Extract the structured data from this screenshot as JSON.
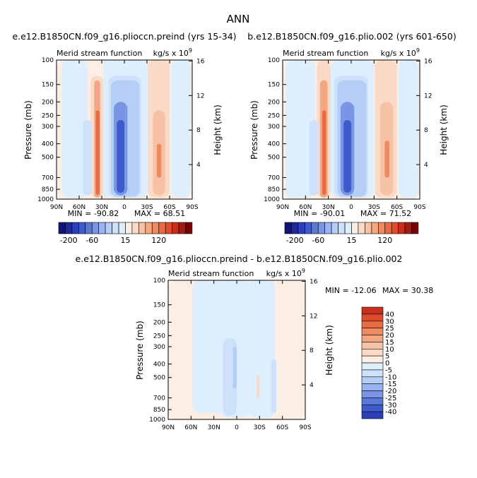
{
  "figure_title": "ANN",
  "colors": {
    "neg": [
      "#ddeeff",
      "#cde1fb",
      "#b4cef6",
      "#98b4ee",
      "#7a95e3",
      "#5a78d8",
      "#3d5bcb",
      "#2a40b4",
      "#1d2a9a",
      "#0f157a"
    ],
    "pos": [
      "#fdeee4",
      "#fad9c5",
      "#f6c2a6",
      "#f2a682",
      "#ee8a60",
      "#e86b42",
      "#de4d2b",
      "#c8301c",
      "#a51a12",
      "#800000"
    ]
  },
  "chart_data": [
    {
      "type": "heatmap",
      "panel": "top-left",
      "title": "e.e12.B1850CN.f09_g16.plioccn.preind (yrs 15-34)",
      "left_string": "Merid stream function",
      "right_string": "kg/s x 10",
      "right_string_exp": "9",
      "ylabel": "Pressure (mb)",
      "y2label": "Height (km)",
      "x_ticks": [
        "90N",
        "60N",
        "30N",
        "0",
        "30S",
        "60S",
        "90S"
      ],
      "y_ticks": [
        "100",
        "150",
        "200",
        "250",
        "300",
        "400",
        "500",
        "700",
        "850",
        "1000"
      ],
      "y2_ticks": [
        "16",
        "12",
        "8",
        "4"
      ],
      "min_label": "MIN = -90.82",
      "max_label": "MAX = 68.51",
      "cells": [
        {
          "lat_from": 90,
          "lat_to": -90,
          "level": 1,
          "p_top": 100,
          "p_bottom": 1000
        },
        {
          "lat_from": 83,
          "lat_to": 49,
          "level": -1,
          "p_top": 100,
          "p_bottom": 975
        },
        {
          "lat_from": 45,
          "lat_to": 28,
          "level": 2,
          "p_top": 130,
          "p_bottom": 975
        },
        {
          "lat_from": 40,
          "lat_to": 32,
          "level": 4,
          "p_top": 140,
          "p_bottom": 975
        },
        {
          "lat_from": 38,
          "lat_to": 33,
          "level": 6,
          "p_top": 230,
          "p_bottom": 930
        },
        {
          "lat_from": 55,
          "lat_to": 43,
          "level": -2,
          "p_top": 270,
          "p_bottom": 940
        },
        {
          "lat_from": 28,
          "lat_to": 21,
          "level": -1,
          "p_top": 100,
          "p_bottom": 975
        },
        {
          "lat_from": 24,
          "lat_to": -31,
          "level": -1,
          "p_top": 100,
          "p_bottom": 975
        },
        {
          "lat_from": 21,
          "lat_to": -22,
          "level": -2,
          "p_top": 130,
          "p_bottom": 975
        },
        {
          "lat_from": 18,
          "lat_to": -20,
          "level": -3,
          "p_top": 140,
          "p_bottom": 960
        },
        {
          "lat_from": 14,
          "lat_to": -4,
          "level": -5,
          "p_top": 200,
          "p_bottom": 940
        },
        {
          "lat_from": 10,
          "lat_to": 0,
          "level": -7,
          "p_top": 270,
          "p_bottom": 900
        },
        {
          "lat_from": -31,
          "lat_to": -60,
          "level": 2,
          "p_top": 100,
          "p_bottom": 975
        },
        {
          "lat_from": -38,
          "lat_to": -54,
          "level": 3,
          "p_top": 230,
          "p_bottom": 940
        },
        {
          "lat_from": -43,
          "lat_to": -49,
          "level": 5,
          "p_top": 400,
          "p_bottom": 700
        },
        {
          "lat_from": -62,
          "lat_to": -88,
          "level": -1,
          "p_top": 100,
          "p_bottom": 975
        }
      ]
    },
    {
      "type": "heatmap",
      "panel": "top-right",
      "title": "b.e12.B1850CN.f09_g16.plio.002 (yrs 601-650)",
      "left_string": "Merid stream function",
      "right_string": "kg/s x 10",
      "right_string_exp": "9",
      "ylabel": "Pressure (mb)",
      "y2label": "Height (km)",
      "x_ticks": [
        "90N",
        "60N",
        "30N",
        "0",
        "30S",
        "60S",
        "90S"
      ],
      "y_ticks": [
        "100",
        "150",
        "200",
        "250",
        "300",
        "400",
        "500",
        "700",
        "850",
        "1000"
      ],
      "y2_ticks": [
        "16",
        "12",
        "8",
        "4"
      ],
      "min_label": "MIN = -90.01",
      "max_label": "MAX = 71.52",
      "cells": [
        {
          "lat_from": 90,
          "lat_to": -90,
          "level": 1,
          "p_top": 100,
          "p_bottom": 1000
        },
        {
          "lat_from": 86,
          "lat_to": 47,
          "level": -1,
          "p_top": 100,
          "p_bottom": 975
        },
        {
          "lat_from": 45,
          "lat_to": 27,
          "level": 2,
          "p_top": 100,
          "p_bottom": 975
        },
        {
          "lat_from": 41,
          "lat_to": 31,
          "level": 4,
          "p_top": 140,
          "p_bottom": 975
        },
        {
          "lat_from": 38,
          "lat_to": 33,
          "level": 6,
          "p_top": 230,
          "p_bottom": 930
        },
        {
          "lat_from": 55,
          "lat_to": 43,
          "level": -2,
          "p_top": 270,
          "p_bottom": 940
        },
        {
          "lat_from": 27,
          "lat_to": -30,
          "level": -1,
          "p_top": 100,
          "p_bottom": 975
        },
        {
          "lat_from": 22,
          "lat_to": -22,
          "level": -2,
          "p_top": 130,
          "p_bottom": 975
        },
        {
          "lat_from": 18,
          "lat_to": -20,
          "level": -3,
          "p_top": 140,
          "p_bottom": 960
        },
        {
          "lat_from": 14,
          "lat_to": -4,
          "level": -5,
          "p_top": 200,
          "p_bottom": 940
        },
        {
          "lat_from": 10,
          "lat_to": 0,
          "level": -7,
          "p_top": 270,
          "p_bottom": 900
        },
        {
          "lat_from": -31,
          "lat_to": -60,
          "level": 2,
          "p_top": 100,
          "p_bottom": 975
        },
        {
          "lat_from": -38,
          "lat_to": -55,
          "level": 3,
          "p_top": 200,
          "p_bottom": 940
        },
        {
          "lat_from": -44,
          "lat_to": -50,
          "level": 5,
          "p_top": 380,
          "p_bottom": 700
        },
        {
          "lat_from": -62,
          "lat_to": -88,
          "level": -1,
          "p_top": 100,
          "p_bottom": 975
        }
      ]
    },
    {
      "type": "heatmap",
      "panel": "bottom",
      "title": "e.e12.B1850CN.f09_g16.plioccn.preind - b.e12.B1850CN.f09_g16.plio.002",
      "left_string": "Merid stream function",
      "right_string": "kg/s x 10",
      "right_string_exp": "9",
      "ylabel": "Pressure (mb)",
      "y2label": "Height (km)",
      "x_ticks": [
        "90N",
        "60N",
        "30N",
        "0",
        "30S",
        "60S",
        "90S"
      ],
      "y_ticks": [
        "100",
        "150",
        "200",
        "250",
        "300",
        "400",
        "500",
        "700",
        "850",
        "1000"
      ],
      "y2_ticks": [
        "16",
        "12",
        "8",
        "4"
      ],
      "min_label": "MIN = -12.06",
      "max_label": "MAX = 30.38",
      "cells": [
        {
          "lat_from": 90,
          "lat_to": -90,
          "level": 1,
          "p_top": 100,
          "p_bottom": 1000
        },
        {
          "lat_from": 58,
          "lat_to": 10,
          "level": -1,
          "p_top": 100,
          "p_bottom": 900
        },
        {
          "lat_from": 22,
          "lat_to": -18,
          "level": -1,
          "p_top": 100,
          "p_bottom": 970
        },
        {
          "lat_from": 18,
          "lat_to": 0,
          "level": -2,
          "p_top": 260,
          "p_bottom": 940
        },
        {
          "lat_from": 5,
          "lat_to": 0,
          "level": -3,
          "p_top": 300,
          "p_bottom": 600
        },
        {
          "lat_from": -15,
          "lat_to": -50,
          "level": -1,
          "p_top": 100,
          "p_bottom": 975
        },
        {
          "lat_from": -45,
          "lat_to": -52,
          "level": -2,
          "p_top": 370,
          "p_bottom": 900
        },
        {
          "lat_from": -26,
          "lat_to": -30,
          "level": 2,
          "p_top": 480,
          "p_bottom": 700
        }
      ]
    }
  ],
  "colorbars": {
    "top_left": {
      "labels": [
        "-200",
        "-60",
        "15",
        "120"
      ]
    },
    "top_right": {
      "labels": [
        "-200",
        "-60",
        "15",
        "120"
      ]
    },
    "bottom": {
      "labels": [
        "40",
        "30",
        "25",
        "20",
        "15",
        "10",
        "5",
        "0",
        "-5",
        "-10",
        "-15",
        "-20",
        "-25",
        "-30",
        "-40"
      ]
    }
  }
}
